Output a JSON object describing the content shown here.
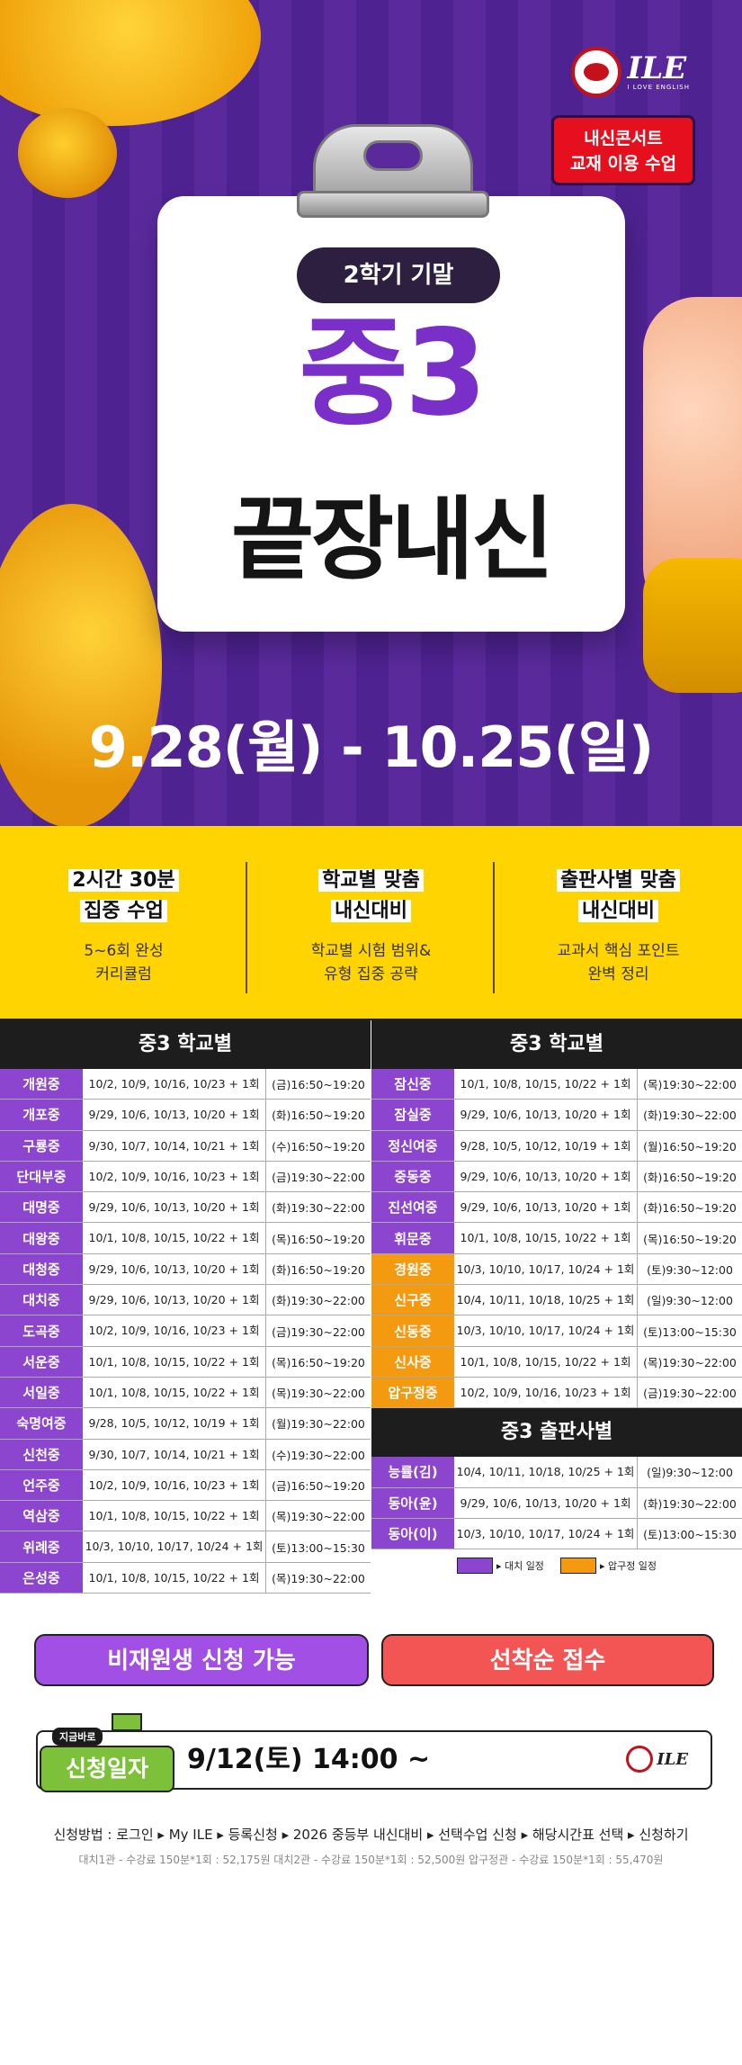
{
  "hero": {
    "logo_text": "ILE",
    "logo_sub": "I LOVE ENGLISH",
    "badge_line1": "내신콘서트",
    "badge_line2": "교재 이용 수업",
    "pill": "2학기 기말",
    "title1": "중3",
    "title2": "끝장내신",
    "dates": "9.28(월) - 10.25(일)"
  },
  "features": [
    {
      "title1": "2시간 30분",
      "title2": "집중 수업",
      "desc1": "5~6회 완성",
      "desc2": "커리큘럼"
    },
    {
      "title1": "학교별 맞춤",
      "title2": "내신대비",
      "desc1": "학교별 시험 범위&",
      "desc2": "유형 집중 공략"
    },
    {
      "title1": "출판사별 맞춤",
      "title2": "내신대비",
      "desc1": "교과서 핵심 포인트",
      "desc2": "완벽 정리"
    }
  ],
  "schedule": {
    "left_header": "중3 학교별",
    "right_header": "중3 학교별",
    "publisher_header": "중3 출판사별",
    "left_rows": [
      {
        "name": "개원중",
        "dates": "10/2, 10/9, 10/16, 10/23 + 1회",
        "time": "(금)16:50~19:20",
        "kind": "p"
      },
      {
        "name": "개포중",
        "dates": "9/29, 10/6, 10/13, 10/20 + 1회",
        "time": "(화)16:50~19:20",
        "kind": "p"
      },
      {
        "name": "구룡중",
        "dates": "9/30, 10/7, 10/14, 10/21 + 1회",
        "time": "(수)16:50~19:20",
        "kind": "p"
      },
      {
        "name": "단대부중",
        "dates": "10/2, 10/9, 10/16, 10/23 + 1회",
        "time": "(금)19:30~22:00",
        "kind": "p"
      },
      {
        "name": "대명중",
        "dates": "9/29, 10/6, 10/13, 10/20 + 1회",
        "time": "(화)19:30~22:00",
        "kind": "p"
      },
      {
        "name": "대왕중",
        "dates": "10/1, 10/8, 10/15, 10/22 + 1회",
        "time": "(목)16:50~19:20",
        "kind": "p"
      },
      {
        "name": "대청중",
        "dates": "9/29, 10/6, 10/13, 10/20 + 1회",
        "time": "(화)16:50~19:20",
        "kind": "p"
      },
      {
        "name": "대치중",
        "dates": "9/29, 10/6, 10/13, 10/20 + 1회",
        "time": "(화)19:30~22:00",
        "kind": "p"
      },
      {
        "name": "도곡중",
        "dates": "10/2, 10/9, 10/16, 10/23 + 1회",
        "time": "(금)19:30~22:00",
        "kind": "p"
      },
      {
        "name": "서운중",
        "dates": "10/1, 10/8, 10/15, 10/22 + 1회",
        "time": "(목)16:50~19:20",
        "kind": "p"
      },
      {
        "name": "서일중",
        "dates": "10/1, 10/8, 10/15, 10/22 + 1회",
        "time": "(목)19:30~22:00",
        "kind": "p"
      },
      {
        "name": "숙명여중",
        "dates": "9/28, 10/5, 10/12, 10/19 + 1회",
        "time": "(월)19:30~22:00",
        "kind": "p"
      },
      {
        "name": "신천중",
        "dates": "9/30, 10/7, 10/14, 10/21 + 1회",
        "time": "(수)19:30~22:00",
        "kind": "p"
      },
      {
        "name": "언주중",
        "dates": "10/2, 10/9, 10/16, 10/23 + 1회",
        "time": "(금)16:50~19:20",
        "kind": "p"
      },
      {
        "name": "역삼중",
        "dates": "10/1, 10/8, 10/15, 10/22 + 1회",
        "time": "(목)19:30~22:00",
        "kind": "p"
      },
      {
        "name": "위례중",
        "dates": "10/3, 10/10, 10/17, 10/24 + 1회",
        "time": "(토)13:00~15:30",
        "kind": "p"
      },
      {
        "name": "은성중",
        "dates": "10/1, 10/8, 10/15, 10/22 + 1회",
        "time": "(목)19:30~22:00",
        "kind": "p"
      }
    ],
    "right_rows": [
      {
        "name": "잠신중",
        "dates": "10/1, 10/8, 10/15, 10/22 + 1회",
        "time": "(목)19:30~22:00",
        "kind": "p"
      },
      {
        "name": "잠실중",
        "dates": "9/29, 10/6, 10/13, 10/20 + 1회",
        "time": "(화)19:30~22:00",
        "kind": "p"
      },
      {
        "name": "정신여중",
        "dates": "9/28, 10/5, 10/12, 10/19 + 1회",
        "time": "(월)16:50~19:20",
        "kind": "p"
      },
      {
        "name": "중동중",
        "dates": "9/29, 10/6, 10/13, 10/20 + 1회",
        "time": "(화)16:50~19:20",
        "kind": "p"
      },
      {
        "name": "진선여중",
        "dates": "9/29, 10/6, 10/13, 10/20 + 1회",
        "time": "(화)16:50~19:20",
        "kind": "p"
      },
      {
        "name": "휘문중",
        "dates": "10/1, 10/8, 10/15, 10/22 + 1회",
        "time": "(목)16:50~19:20",
        "kind": "p"
      },
      {
        "name": "경원중",
        "dates": "10/3, 10/10, 10/17, 10/24 + 1회",
        "time": "(토)9:30~12:00",
        "kind": "o"
      },
      {
        "name": "신구중",
        "dates": "10/4, 10/11, 10/18, 10/25 + 1회",
        "time": "(일)9:30~12:00",
        "kind": "o"
      },
      {
        "name": "신동중",
        "dates": "10/3, 10/10, 10/17, 10/24 + 1회",
        "time": "(토)13:00~15:30",
        "kind": "o"
      },
      {
        "name": "신사중",
        "dates": "10/1, 10/8, 10/15, 10/22 + 1회",
        "time": "(목)19:30~22:00",
        "kind": "o"
      },
      {
        "name": "압구정중",
        "dates": "10/2, 10/9, 10/16, 10/23 + 1회",
        "time": "(금)19:30~22:00",
        "kind": "o"
      }
    ],
    "publisher_rows": [
      {
        "name": "능률(김)",
        "dates": "10/4, 10/11, 10/18, 10/25 + 1회",
        "time": "(일)9:30~12:00",
        "kind": "p"
      },
      {
        "name": "동아(윤)",
        "dates": "9/29, 10/6, 10/13, 10/20 + 1회",
        "time": "(화)19:30~22:00",
        "kind": "p"
      },
      {
        "name": "동아(이)",
        "dates": "10/3, 10/10, 10/17, 10/24 + 1회",
        "time": "(토)13:00~15:30",
        "kind": "p"
      }
    ],
    "legend": {
      "purple_label": "▸ 대치 일정",
      "orange_label": "▸ 압구정 일정",
      "purple": "#8b45cf",
      "orange": "#f39a10"
    }
  },
  "bottom": {
    "btn_left": "비재원생 신청 가능",
    "btn_right": "선착순 접수",
    "tag_small": "지금바로",
    "tag_main": "신청일자",
    "apply_date": "9/12(토) 14:00 ~",
    "mini_logo": "ILE",
    "method": "신청방법 : 로그인 ▸ My ILE ▸ 등록신청 ▸ 2026 중등부 내신대비 ▸ 선택수업 신청 ▸ 해당시간표 선택 ▸ 신청하기",
    "fees": "대치1관 - 수강료 150분*1회 : 52,175원    대치2관 - 수강료 150분*1회 : 52,500원    압구정관 - 수강료 150분*1회 : 55,470원"
  }
}
